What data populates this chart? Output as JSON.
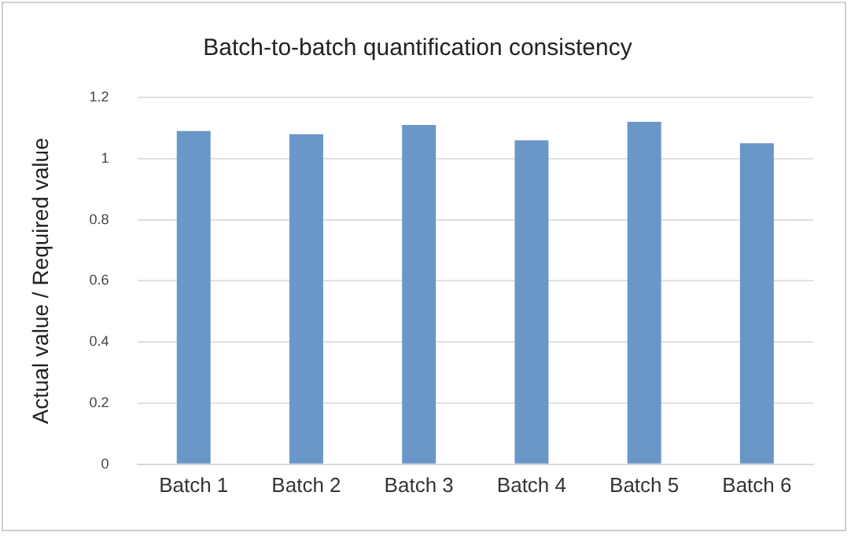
{
  "chart_data": {
    "type": "bar",
    "title": "Batch-to-batch quantification consistency",
    "ylabel": "Actual value / Required value",
    "categories": [
      "Batch 1",
      "Batch 2",
      "Batch 3",
      "Batch 4",
      "Batch 5",
      "Batch 6"
    ],
    "values": [
      1.09,
      1.08,
      1.11,
      1.06,
      1.12,
      1.05
    ],
    "color": "#6a96c8",
    "ylim": [
      0,
      1.2
    ],
    "yticks": [
      0,
      0.2,
      0.4,
      0.6,
      0.8,
      1,
      1.2
    ],
    "grid": "y"
  }
}
